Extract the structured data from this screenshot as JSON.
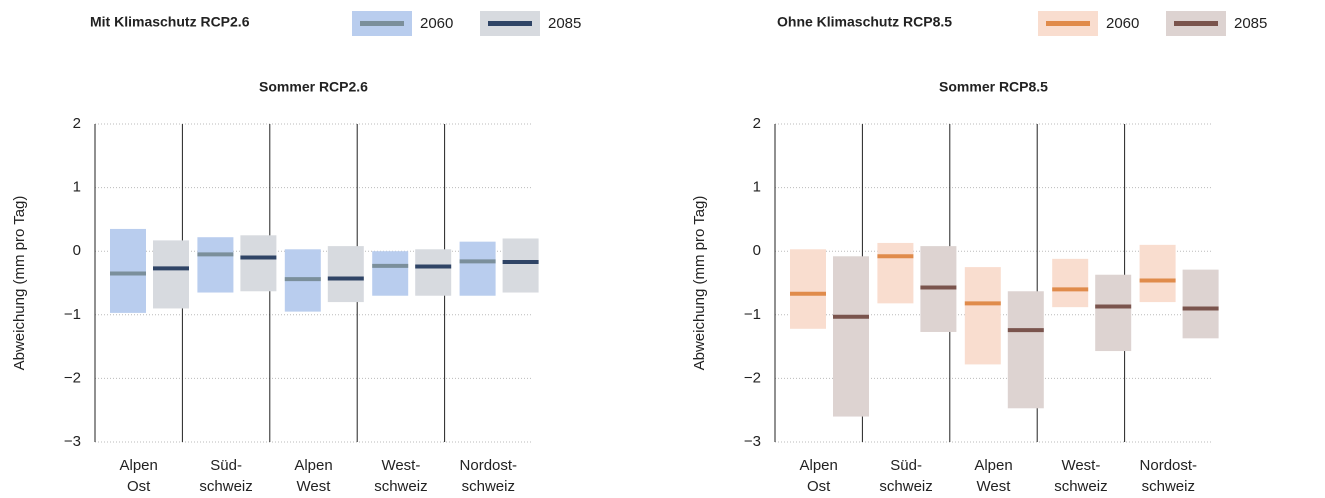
{
  "chart_data": [
    {
      "type": "range-bar",
      "legend_title": "Mit Klimaschutz RCP2.6",
      "title": "Sommer RCP2.6",
      "y_label": "Abweichung (mm pro Tag)",
      "categories": [
        [
          "Alpen",
          "Ost"
        ],
        [
          "Süd-",
          "schweiz"
        ],
        [
          "Alpen",
          "West"
        ],
        [
          "West-",
          "schweiz"
        ],
        [
          "Nordost-",
          "schweiz"
        ]
      ],
      "ylim": [
        -3,
        2
      ],
      "yticks": [
        {
          "value": -3,
          "label": "−3"
        },
        {
          "value": -2,
          "label": "−2"
        },
        {
          "value": -1,
          "label": "−1"
        },
        0,
        1,
        2
      ],
      "grid": true,
      "series": [
        {
          "name": "2060",
          "color": "#b9cdee",
          "median_color": "#7b8f9b",
          "values": [
            -0.35,
            -0.05,
            -0.44,
            -0.23,
            -0.16
          ],
          "low": [
            -0.97,
            -0.65,
            -0.95,
            -0.7,
            -0.7
          ],
          "high": [
            0.35,
            0.22,
            0.03,
            0.0,
            0.15
          ]
        },
        {
          "name": "2085",
          "color": "#d7dadf",
          "median_color": "#2f4466",
          "values": [
            -0.27,
            -0.1,
            -0.43,
            -0.24,
            -0.17
          ],
          "low": [
            -0.9,
            -0.63,
            -0.8,
            -0.7,
            -0.65
          ],
          "high": [
            0.17,
            0.25,
            0.08,
            0.03,
            0.2
          ]
        }
      ]
    },
    {
      "type": "range-bar",
      "legend_title": "Ohne Klimaschutz RCP8.5",
      "title": "Sommer RCP8.5",
      "y_label": "Abweichung (mm pro Tag)",
      "categories": [
        [
          "Alpen",
          "Ost"
        ],
        [
          "Süd-",
          "schweiz"
        ],
        [
          "Alpen",
          "West"
        ],
        [
          "West-",
          "schweiz"
        ],
        [
          "Nordost-",
          "schweiz"
        ]
      ],
      "ylim": [
        -3,
        2
      ],
      "yticks": [
        {
          "value": -3,
          "label": "−3"
        },
        {
          "value": -2,
          "label": "−2"
        },
        {
          "value": -1,
          "label": "−1"
        },
        0,
        1,
        2
      ],
      "grid": true,
      "series": [
        {
          "name": "2060",
          "color": "#f9ddcf",
          "median_color": "#e08b4b",
          "values": [
            -0.67,
            -0.08,
            -0.82,
            -0.6,
            -0.46
          ],
          "low": [
            -1.22,
            -0.82,
            -1.78,
            -0.88,
            -0.8
          ],
          "high": [
            0.03,
            0.13,
            -0.25,
            -0.12,
            0.1
          ]
        },
        {
          "name": "2085",
          "color": "#ddd3d1",
          "median_color": "#7a544d",
          "values": [
            -1.03,
            -0.57,
            -1.24,
            -0.87,
            -0.9
          ],
          "low": [
            -2.6,
            -1.27,
            -2.47,
            -1.57,
            -1.37
          ],
          "high": [
            -0.08,
            0.08,
            -0.63,
            -0.37,
            -0.29
          ]
        }
      ]
    }
  ]
}
